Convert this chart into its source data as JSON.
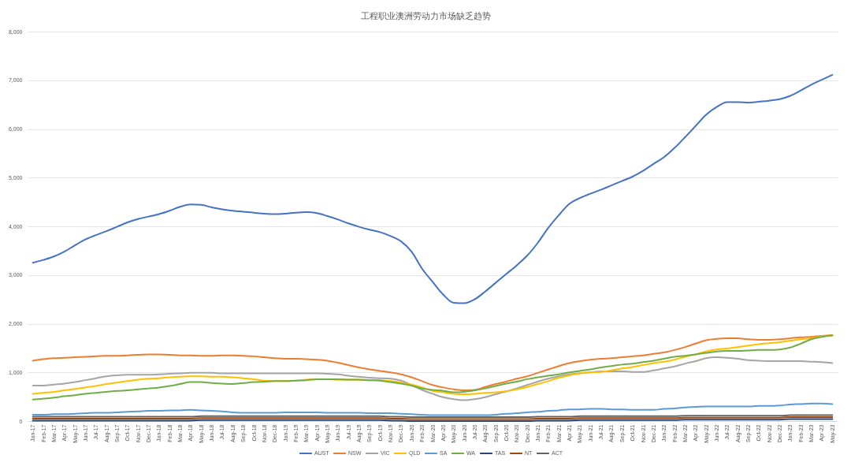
{
  "chart_data": {
    "type": "line",
    "title": "工程职业澳洲劳动力市场缺乏趋势",
    "categories": [
      "Jan-17",
      "Feb-17",
      "Mar-17",
      "Apr-17",
      "May-17",
      "Jun-17",
      "Jul-17",
      "Aug-17",
      "Sep-17",
      "Oct-17",
      "Nov-17",
      "Dec-17",
      "Jan-18",
      "Feb-18",
      "Mar-18",
      "Apr-18",
      "May-18",
      "Jun-18",
      "Jul-18",
      "Aug-18",
      "Sep-18",
      "Oct-18",
      "Nov-18",
      "Dec-18",
      "Jan-19",
      "Feb-19",
      "Mar-19",
      "Apr-19",
      "May-19",
      "Jun-19",
      "Jul-19",
      "Aug-19",
      "Sep-19",
      "Oct-19",
      "Nov-19",
      "Dec-19",
      "Jan-20",
      "Feb-20",
      "Mar-20",
      "Apr-20",
      "May-20",
      "Jun-20",
      "Jul-20",
      "Aug-20",
      "Sep-20",
      "Oct-20",
      "Nov-20",
      "Dec-20",
      "Jan-21",
      "Feb-21",
      "Mar-21",
      "Apr-21",
      "May-21",
      "Jun-21",
      "Jul-21",
      "Aug-21",
      "Sep-21",
      "Oct-21",
      "Nov-21",
      "Dec-21",
      "Jan-22",
      "Feb-22",
      "Mar-22",
      "Apr-22",
      "May-22",
      "Jun-22",
      "Jul-22",
      "Aug-22",
      "Sep-22",
      "Oct-22",
      "Nov-22",
      "Dec-22",
      "Jan-23",
      "Feb-23",
      "Mar-23",
      "Apr-23",
      "May-23"
    ],
    "series": [
      {
        "name": "AUST",
        "color": "#4472c4",
        "values": [
          3250,
          3310,
          3380,
          3480,
          3610,
          3730,
          3820,
          3900,
          3990,
          4080,
          4150,
          4200,
          4250,
          4320,
          4400,
          4450,
          4440,
          4390,
          4350,
          4320,
          4300,
          4280,
          4260,
          4250,
          4260,
          4280,
          4290,
          4270,
          4210,
          4140,
          4060,
          3990,
          3930,
          3880,
          3800,
          3690,
          3480,
          3130,
          2860,
          2600,
          2430,
          2420,
          2500,
          2660,
          2840,
          3020,
          3200,
          3400,
          3660,
          3970,
          4230,
          4460,
          4580,
          4670,
          4750,
          4840,
          4930,
          5020,
          5140,
          5280,
          5420,
          5610,
          5830,
          6060,
          6290,
          6450,
          6550,
          6550,
          6540,
          6560,
          6580,
          6610,
          6680,
          6790,
          6910,
          7010,
          7110
        ]
      },
      {
        "name": "NSW",
        "color": "#ed7d31",
        "values": [
          1240,
          1270,
          1290,
          1300,
          1310,
          1320,
          1330,
          1340,
          1340,
          1350,
          1360,
          1370,
          1370,
          1360,
          1350,
          1350,
          1340,
          1340,
          1350,
          1350,
          1340,
          1330,
          1310,
          1290,
          1280,
          1280,
          1270,
          1260,
          1240,
          1200,
          1150,
          1100,
          1060,
          1030,
          1000,
          960,
          900,
          820,
          740,
          690,
          650,
          630,
          640,
          700,
          760,
          810,
          870,
          920,
          990,
          1060,
          1130,
          1190,
          1230,
          1260,
          1280,
          1290,
          1310,
          1330,
          1350,
          1380,
          1410,
          1460,
          1520,
          1590,
          1660,
          1690,
          1700,
          1700,
          1680,
          1670,
          1670,
          1680,
          1700,
          1720,
          1730,
          1750,
          1760
        ]
      },
      {
        "name": "VIC",
        "color": "#a5a5a5",
        "values": [
          730,
          730,
          750,
          770,
          800,
          840,
          880,
          920,
          940,
          950,
          950,
          950,
          960,
          970,
          980,
          990,
          990,
          990,
          980,
          980,
          980,
          980,
          980,
          980,
          980,
          980,
          980,
          980,
          970,
          960,
          930,
          910,
          890,
          880,
          870,
          830,
          740,
          640,
          560,
          490,
          450,
          430,
          450,
          490,
          550,
          610,
          670,
          740,
          810,
          870,
          920,
          960,
          980,
          1000,
          1020,
          1020,
          1020,
          1010,
          1010,
          1040,
          1080,
          1120,
          1180,
          1230,
          1290,
          1310,
          1300,
          1280,
          1250,
          1240,
          1230,
          1230,
          1230,
          1230,
          1220,
          1210,
          1190
        ]
      },
      {
        "name": "QLD",
        "color": "#ffc000",
        "values": [
          560,
          580,
          600,
          630,
          660,
          690,
          720,
          760,
          790,
          820,
          850,
          870,
          880,
          900,
          910,
          920,
          920,
          910,
          910,
          900,
          880,
          860,
          830,
          820,
          820,
          830,
          850,
          860,
          860,
          850,
          850,
          850,
          840,
          840,
          820,
          790,
          750,
          690,
          620,
          590,
          560,
          550,
          560,
          580,
          590,
          610,
          650,
          700,
          760,
          820,
          890,
          940,
          980,
          1000,
          1010,
          1040,
          1080,
          1110,
          1150,
          1190,
          1220,
          1260,
          1320,
          1370,
          1430,
          1470,
          1490,
          1520,
          1550,
          1580,
          1600,
          1620,
          1650,
          1680,
          1700,
          1740,
          1760
        ]
      },
      {
        "name": "SA",
        "color": "#5b9bd5",
        "values": [
          130,
          130,
          140,
          140,
          150,
          160,
          170,
          170,
          180,
          190,
          200,
          210,
          210,
          220,
          220,
          230,
          220,
          210,
          200,
          180,
          170,
          170,
          170,
          170,
          180,
          180,
          180,
          180,
          170,
          170,
          170,
          170,
          160,
          160,
          160,
          150,
          140,
          130,
          120,
          120,
          120,
          120,
          120,
          120,
          130,
          150,
          160,
          180,
          190,
          210,
          220,
          240,
          240,
          250,
          250,
          240,
          240,
          230,
          230,
          230,
          250,
          260,
          280,
          290,
          300,
          300,
          300,
          300,
          300,
          310,
          310,
          320,
          340,
          350,
          360,
          360,
          350
        ]
      },
      {
        "name": "WA",
        "color": "#70ad47",
        "values": [
          440,
          460,
          480,
          510,
          530,
          560,
          580,
          600,
          620,
          630,
          650,
          670,
          690,
          720,
          760,
          800,
          800,
          780,
          770,
          760,
          780,
          800,
          810,
          820,
          820,
          830,
          840,
          860,
          860,
          860,
          850,
          850,
          840,
          830,
          800,
          770,
          730,
          670,
          640,
          620,
          590,
          600,
          630,
          670,
          720,
          770,
          810,
          860,
          900,
          930,
          960,
          1000,
          1030,
          1060,
          1100,
          1130,
          1160,
          1180,
          1210,
          1240,
          1280,
          1320,
          1340,
          1370,
          1400,
          1430,
          1440,
          1440,
          1450,
          1460,
          1460,
          1470,
          1510,
          1590,
          1680,
          1730,
          1760
        ]
      },
      {
        "name": "TAS",
        "color": "#264478",
        "values": [
          10,
          10,
          10,
          10,
          10,
          10,
          10,
          10,
          10,
          10,
          10,
          10,
          10,
          10,
          10,
          10,
          20,
          20,
          20,
          20,
          20,
          20,
          20,
          20,
          20,
          20,
          20,
          20,
          20,
          20,
          20,
          20,
          20,
          20,
          10,
          10,
          0,
          0,
          0,
          0,
          0,
          0,
          0,
          0,
          0,
          0,
          0,
          0,
          10,
          10,
          10,
          10,
          20,
          20,
          20,
          20,
          20,
          20,
          20,
          20,
          20,
          20,
          30,
          30,
          30,
          30,
          30,
          30,
          30,
          30,
          30,
          30,
          40,
          40,
          40,
          40,
          40
        ]
      },
      {
        "name": "NT",
        "color": "#9e480e",
        "values": [
          50,
          50,
          50,
          50,
          50,
          50,
          50,
          50,
          50,
          50,
          50,
          50,
          50,
          50,
          50,
          50,
          60,
          60,
          60,
          60,
          60,
          60,
          60,
          60,
          60,
          60,
          60,
          60,
          60,
          60,
          60,
          60,
          60,
          60,
          50,
          50,
          40,
          40,
          40,
          40,
          40,
          40,
          40,
          40,
          40,
          40,
          40,
          40,
          50,
          50,
          50,
          50,
          60,
          60,
          60,
          60,
          60,
          60,
          60,
          60,
          60,
          60,
          70,
          70,
          70,
          70,
          70,
          70,
          70,
          70,
          70,
          70,
          80,
          80,
          80,
          80,
          80
        ]
      },
      {
        "name": "ACT",
        "color": "#636363",
        "values": [
          90,
          90,
          90,
          90,
          90,
          90,
          90,
          90,
          90,
          90,
          90,
          90,
          90,
          90,
          90,
          90,
          100,
          100,
          100,
          100,
          100,
          100,
          100,
          100,
          100,
          100,
          100,
          100,
          100,
          100,
          100,
          100,
          100,
          100,
          90,
          90,
          80,
          80,
          80,
          80,
          80,
          80,
          80,
          80,
          80,
          80,
          80,
          80,
          90,
          90,
          90,
          90,
          100,
          100,
          100,
          100,
          100,
          100,
          100,
          100,
          100,
          100,
          110,
          110,
          110,
          110,
          110,
          110,
          110,
          110,
          110,
          110,
          120,
          120,
          120,
          120,
          120
        ]
      }
    ],
    "ylim": [
      0,
      8000
    ],
    "yticks": [
      0,
      {
        "value": 1000,
        "label": "1,000"
      },
      {
        "value": 2000,
        "label": "2,000"
      },
      {
        "value": 3000,
        "label": "3,000"
      },
      {
        "value": 4000,
        "label": "4,000"
      },
      {
        "value": 5000,
        "label": "5,000"
      },
      {
        "value": 6000,
        "label": "6,000"
      },
      {
        "value": 7000,
        "label": "7,000"
      },
      {
        "value": 8000,
        "label": "8,000"
      }
    ],
    "grid": "y",
    "legend": "bottom"
  }
}
